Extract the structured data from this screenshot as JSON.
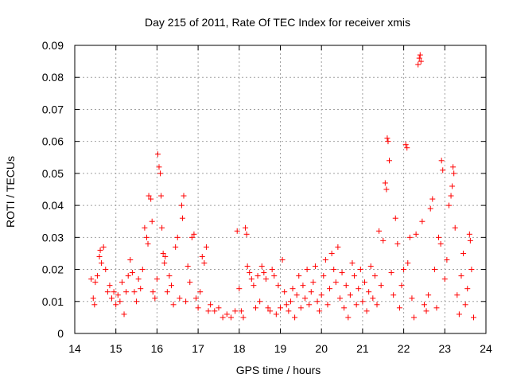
{
  "chart_data": {
    "type": "scatter",
    "title": "Day 215 of 2011, Rate Of TEC Index for receiver xmis",
    "xlabel": "GPS time / hours",
    "ylabel": "ROTI / TECUs",
    "xlim": [
      14,
      24
    ],
    "ylim": [
      0,
      0.09
    ],
    "x_ticks": [
      "14",
      "15",
      "16",
      "17",
      "18",
      "19",
      "20",
      "21",
      "22",
      "23",
      "24"
    ],
    "y_ticks": [
      "0",
      "0.01",
      "0.02",
      "0.03",
      "0.04",
      "0.05",
      "0.06",
      "0.07",
      "0.08",
      "0.09"
    ],
    "grid": true,
    "marker": "+",
    "series_color": "#ff0000",
    "series": [
      {
        "name": "ROTI",
        "points": [
          [
            14.4,
            0.017
          ],
          [
            14.45,
            0.011
          ],
          [
            14.48,
            0.009
          ],
          [
            14.5,
            0.016
          ],
          [
            14.55,
            0.018
          ],
          [
            14.6,
            0.024
          ],
          [
            14.62,
            0.026
          ],
          [
            14.65,
            0.022
          ],
          [
            14.7,
            0.027
          ],
          [
            14.75,
            0.02
          ],
          [
            14.8,
            0.013
          ],
          [
            14.85,
            0.015
          ],
          [
            14.9,
            0.011
          ],
          [
            14.95,
            0.013
          ],
          [
            15.0,
            0.009
          ],
          [
            15.05,
            0.012
          ],
          [
            15.1,
            0.01
          ],
          [
            15.15,
            0.016
          ],
          [
            15.2,
            0.006
          ],
          [
            15.25,
            0.013
          ],
          [
            15.3,
            0.018
          ],
          [
            15.35,
            0.023
          ],
          [
            15.4,
            0.019
          ],
          [
            15.45,
            0.013
          ],
          [
            15.5,
            0.01
          ],
          [
            15.55,
            0.017
          ],
          [
            15.6,
            0.014
          ],
          [
            15.65,
            0.02
          ],
          [
            15.7,
            0.033
          ],
          [
            15.75,
            0.03
          ],
          [
            15.78,
            0.028
          ],
          [
            15.8,
            0.043
          ],
          [
            15.85,
            0.042
          ],
          [
            15.88,
            0.035
          ],
          [
            15.9,
            0.013
          ],
          [
            15.95,
            0.011
          ],
          [
            16.0,
            0.017
          ],
          [
            16.02,
            0.056
          ],
          [
            16.05,
            0.052
          ],
          [
            16.08,
            0.05
          ],
          [
            16.1,
            0.043
          ],
          [
            16.12,
            0.033
          ],
          [
            16.15,
            0.025
          ],
          [
            16.18,
            0.022
          ],
          [
            16.2,
            0.024
          ],
          [
            16.25,
            0.013
          ],
          [
            16.3,
            0.018
          ],
          [
            16.35,
            0.015
          ],
          [
            16.4,
            0.009
          ],
          [
            16.45,
            0.027
          ],
          [
            16.5,
            0.03
          ],
          [
            16.55,
            0.011
          ],
          [
            16.6,
            0.04
          ],
          [
            16.62,
            0.036
          ],
          [
            16.65,
            0.043
          ],
          [
            16.7,
            0.01
          ],
          [
            16.75,
            0.021
          ],
          [
            16.8,
            0.016
          ],
          [
            16.85,
            0.03
          ],
          [
            16.9,
            0.031
          ],
          [
            16.95,
            0.011
          ],
          [
            17.0,
            0.008
          ],
          [
            17.05,
            0.013
          ],
          [
            17.1,
            0.024
          ],
          [
            17.15,
            0.022
          ],
          [
            17.2,
            0.027
          ],
          [
            17.25,
            0.007
          ],
          [
            17.3,
            0.009
          ],
          [
            17.4,
            0.007
          ],
          [
            17.5,
            0.008
          ],
          [
            17.6,
            0.005
          ],
          [
            17.7,
            0.006
          ],
          [
            17.8,
            0.005
          ],
          [
            17.9,
            0.007
          ],
          [
            17.95,
            0.032
          ],
          [
            18.0,
            0.014
          ],
          [
            18.05,
            0.007
          ],
          [
            18.1,
            0.005
          ],
          [
            18.15,
            0.033
          ],
          [
            18.18,
            0.031
          ],
          [
            18.2,
            0.021
          ],
          [
            18.25,
            0.019
          ],
          [
            18.3,
            0.017
          ],
          [
            18.35,
            0.015
          ],
          [
            18.4,
            0.008
          ],
          [
            18.45,
            0.018
          ],
          [
            18.5,
            0.01
          ],
          [
            18.55,
            0.021
          ],
          [
            18.6,
            0.019
          ],
          [
            18.65,
            0.017
          ],
          [
            18.7,
            0.008
          ],
          [
            18.75,
            0.007
          ],
          [
            18.8,
            0.02
          ],
          [
            18.85,
            0.018
          ],
          [
            18.9,
            0.006
          ],
          [
            18.95,
            0.015
          ],
          [
            19.0,
            0.008
          ],
          [
            19.05,
            0.023
          ],
          [
            19.1,
            0.013
          ],
          [
            19.15,
            0.009
          ],
          [
            19.2,
            0.007
          ],
          [
            19.25,
            0.01
          ],
          [
            19.3,
            0.014
          ],
          [
            19.35,
            0.005
          ],
          [
            19.4,
            0.012
          ],
          [
            19.45,
            0.018
          ],
          [
            19.5,
            0.008
          ],
          [
            19.55,
            0.015
          ],
          [
            19.6,
            0.011
          ],
          [
            19.65,
            0.02
          ],
          [
            19.7,
            0.009
          ],
          [
            19.75,
            0.013
          ],
          [
            19.8,
            0.016
          ],
          [
            19.85,
            0.021
          ],
          [
            19.9,
            0.01
          ],
          [
            19.95,
            0.007
          ],
          [
            20.0,
            0.012
          ],
          [
            20.05,
            0.018
          ],
          [
            20.1,
            0.023
          ],
          [
            20.15,
            0.009
          ],
          [
            20.2,
            0.014
          ],
          [
            20.25,
            0.025
          ],
          [
            20.3,
            0.02
          ],
          [
            20.35,
            0.016
          ],
          [
            20.4,
            0.027
          ],
          [
            20.45,
            0.011
          ],
          [
            20.5,
            0.019
          ],
          [
            20.55,
            0.008
          ],
          [
            20.6,
            0.015
          ],
          [
            20.65,
            0.005
          ],
          [
            20.7,
            0.012
          ],
          [
            20.75,
            0.022
          ],
          [
            20.8,
            0.018
          ],
          [
            20.85,
            0.009
          ],
          [
            20.9,
            0.014
          ],
          [
            20.95,
            0.02
          ],
          [
            21.0,
            0.01
          ],
          [
            21.05,
            0.016
          ],
          [
            21.1,
            0.007
          ],
          [
            21.15,
            0.013
          ],
          [
            21.2,
            0.021
          ],
          [
            21.25,
            0.011
          ],
          [
            21.3,
            0.018
          ],
          [
            21.35,
            0.009
          ],
          [
            21.4,
            0.032
          ],
          [
            21.45,
            0.015
          ],
          [
            21.5,
            0.029
          ],
          [
            21.55,
            0.047
          ],
          [
            21.58,
            0.045
          ],
          [
            21.6,
            0.061
          ],
          [
            21.62,
            0.06
          ],
          [
            21.65,
            0.054
          ],
          [
            21.7,
            0.019
          ],
          [
            21.75,
            0.012
          ],
          [
            21.8,
            0.036
          ],
          [
            21.85,
            0.028
          ],
          [
            21.9,
            0.008
          ],
          [
            21.95,
            0.015
          ],
          [
            22.0,
            0.02
          ],
          [
            22.05,
            0.059
          ],
          [
            22.08,
            0.058
          ],
          [
            22.1,
            0.022
          ],
          [
            22.15,
            0.03
          ],
          [
            22.2,
            0.011
          ],
          [
            22.25,
            0.005
          ],
          [
            22.3,
            0.031
          ],
          [
            22.35,
            0.084
          ],
          [
            22.38,
            0.086
          ],
          [
            22.4,
            0.087
          ],
          [
            22.42,
            0.085
          ],
          [
            22.45,
            0.035
          ],
          [
            22.5,
            0.009
          ],
          [
            22.55,
            0.007
          ],
          [
            22.6,
            0.012
          ],
          [
            22.65,
            0.039
          ],
          [
            22.7,
            0.042
          ],
          [
            22.75,
            0.02
          ],
          [
            22.8,
            0.008
          ],
          [
            22.85,
            0.03
          ],
          [
            22.9,
            0.028
          ],
          [
            22.92,
            0.054
          ],
          [
            22.95,
            0.051
          ],
          [
            23.0,
            0.017
          ],
          [
            23.05,
            0.023
          ],
          [
            23.1,
            0.04
          ],
          [
            23.15,
            0.043
          ],
          [
            23.18,
            0.046
          ],
          [
            23.2,
            0.052
          ],
          [
            23.22,
            0.05
          ],
          [
            23.25,
            0.033
          ],
          [
            23.3,
            0.012
          ],
          [
            23.35,
            0.006
          ],
          [
            23.4,
            0.018
          ],
          [
            23.45,
            0.025
          ],
          [
            23.5,
            0.009
          ],
          [
            23.55,
            0.014
          ],
          [
            23.6,
            0.031
          ],
          [
            23.62,
            0.029
          ],
          [
            23.65,
            0.02
          ],
          [
            23.7,
            0.005
          ]
        ]
      }
    ]
  }
}
